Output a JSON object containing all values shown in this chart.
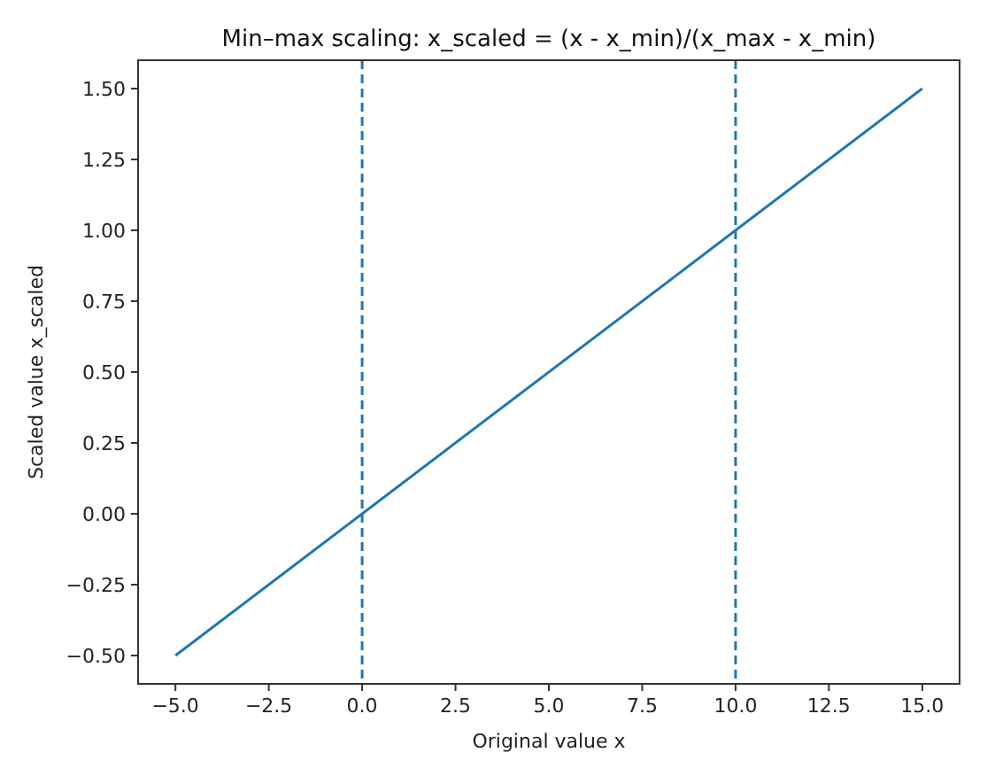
{
  "chart_data": {
    "type": "line",
    "title": "Min–max scaling: x_scaled = (x - x_min)/(x_max - x_min)",
    "xlabel": "Original value x",
    "ylabel": "Scaled value x_scaled",
    "x": [
      -5,
      15
    ],
    "series": [
      {
        "color": "#1f77b4",
        "values": [
          -0.5,
          1.5
        ]
      }
    ],
    "xlim": [
      -6,
      16
    ],
    "ylim": [
      -0.6,
      1.6
    ],
    "xticks": [
      {
        "value": -5,
        "label": "−5.0"
      },
      {
        "value": -2.5,
        "label": "−2.5"
      },
      {
        "value": 0,
        "label": "0.0"
      },
      {
        "value": 2.5,
        "label": "2.5"
      },
      {
        "value": 5,
        "label": "5.0"
      },
      {
        "value": 7.5,
        "label": "7.5"
      },
      {
        "value": 10,
        "label": "10.0"
      },
      {
        "value": 12.5,
        "label": "12.5"
      },
      {
        "value": 15,
        "label": "15.0"
      }
    ],
    "yticks": [
      {
        "value": -0.5,
        "label": "−0.50"
      },
      {
        "value": -0.25,
        "label": "−0.25"
      },
      {
        "value": 0,
        "label": "0.00"
      },
      {
        "value": 0.25,
        "label": "0.25"
      },
      {
        "value": 0.5,
        "label": "0.50"
      },
      {
        "value": 0.75,
        "label": "0.75"
      },
      {
        "value": 1,
        "label": "1.00"
      },
      {
        "value": 1.25,
        "label": "1.25"
      },
      {
        "value": 1.5,
        "label": "1.50"
      }
    ],
    "ref_lines": [
      {
        "axis": "x",
        "value": 0,
        "color": "#1f77b4",
        "line_style": "dashed"
      },
      {
        "axis": "x",
        "value": 10,
        "color": "#1f77b4",
        "line_style": "dashed"
      }
    ],
    "line_style": "solid",
    "marker": "none",
    "grid": false
  }
}
